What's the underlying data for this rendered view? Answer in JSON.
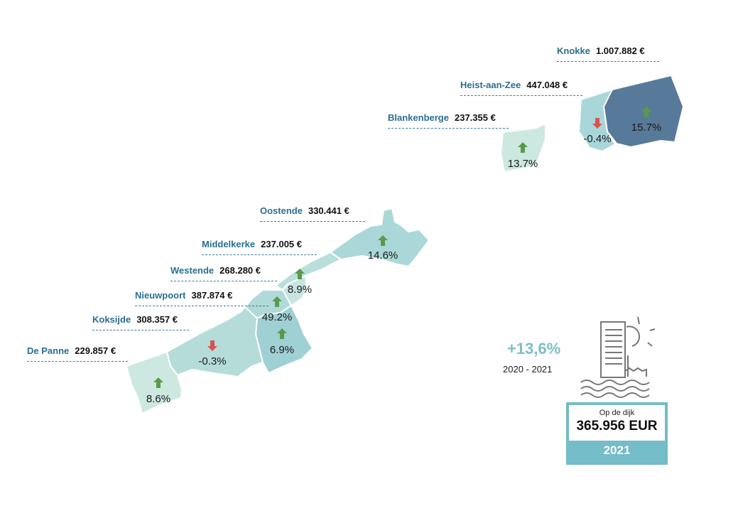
{
  "municipalities": [
    {
      "name": "Knokke",
      "price": "1.007.882 €",
      "change": "15.7%",
      "direction": "up"
    },
    {
      "name": "Heist-aan-Zee",
      "price": "447.048 €",
      "change": "-0.4%",
      "direction": "down"
    },
    {
      "name": "Blankenberge",
      "price": "237.355 €",
      "change": "13.7%",
      "direction": "up"
    },
    {
      "name": "Oostende",
      "price": "330.441 €",
      "change": "14.6%",
      "direction": "up"
    },
    {
      "name": "Middelkerke",
      "price": "237.005 €",
      "change": "8.9%",
      "direction": "up"
    },
    {
      "name": "Westende",
      "price": "268.280 €",
      "change": "49.2%",
      "direction": "up"
    },
    {
      "name": "Nieuwpoort",
      "price": "387.874 €",
      "change": "6.9%",
      "direction": "up"
    },
    {
      "name": "Koksijde",
      "price": "308.357 €",
      "change": "-0.3%",
      "direction": "down"
    },
    {
      "name": "De Panne",
      "price": "229.857 €",
      "change": "8.6%",
      "direction": "up"
    }
  ],
  "summary": {
    "change": "+13,6%",
    "period": "2020 -  2021",
    "caption": "Op de dijk",
    "value": "365.956 EUR",
    "year": "2021"
  },
  "colors": {
    "label_name": "#2b6e93",
    "up_arrow": "#5a9a4a",
    "down_arrow": "#d9534f",
    "knokke_fill": "#587a9a",
    "light_fill": "#cde8e0",
    "medium_fill": "#a9d6d6",
    "card": "#74bcc7",
    "summary_pct": "#7bbfc9"
  }
}
